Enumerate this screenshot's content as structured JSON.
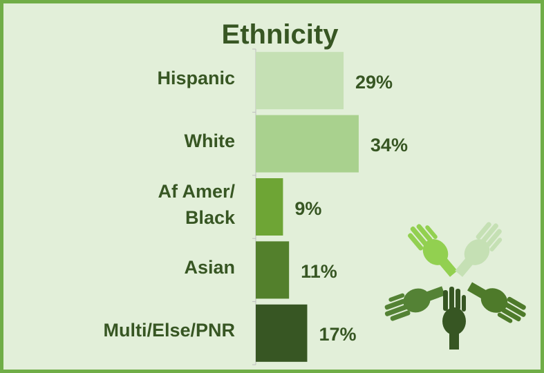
{
  "chart_data": {
    "type": "bar",
    "orientation": "horizontal",
    "title": "Ethnicity",
    "categories": [
      "Hispanic",
      "White",
      "Af Amer/\nBlack",
      "Asian",
      "Multi/Else/PNR"
    ],
    "values": [
      29,
      34,
      9,
      11,
      17
    ],
    "value_labels": [
      "29%",
      "34%",
      "9%",
      "11%",
      "17%"
    ],
    "colors": [
      "#c5e0b4",
      "#a9d18e",
      "#6ea535",
      "#53802c",
      "#375623"
    ]
  }
}
